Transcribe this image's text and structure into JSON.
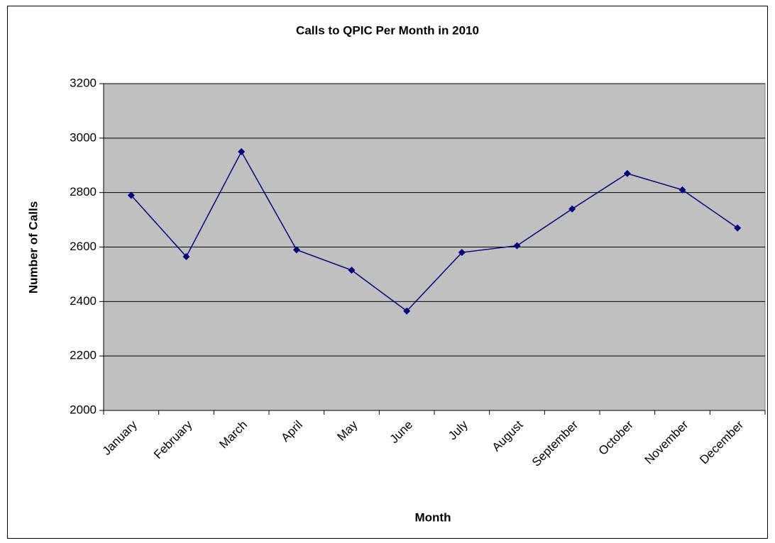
{
  "chart_data": {
    "type": "line",
    "title": "Calls to QPIC Per Month in 2010",
    "x_label": "Month",
    "y_label": "Number of Calls",
    "categories": [
      "January",
      "February",
      "March",
      "April",
      "May",
      "June",
      "July",
      "August",
      "September",
      "October",
      "November",
      "December"
    ],
    "series": [
      {
        "name": "Calls",
        "color": "#000080",
        "values": [
          2790,
          2565,
          2950,
          2590,
          2515,
          2365,
          2580,
          2605,
          2740,
          2870,
          2810,
          2670
        ]
      }
    ],
    "ylim": [
      2000,
      3200
    ],
    "yticks": [
      2000,
      2200,
      2400,
      2600,
      2800,
      3000,
      3200
    ],
    "grid": true,
    "plot_background": "#c0c0c0",
    "legend": false
  }
}
